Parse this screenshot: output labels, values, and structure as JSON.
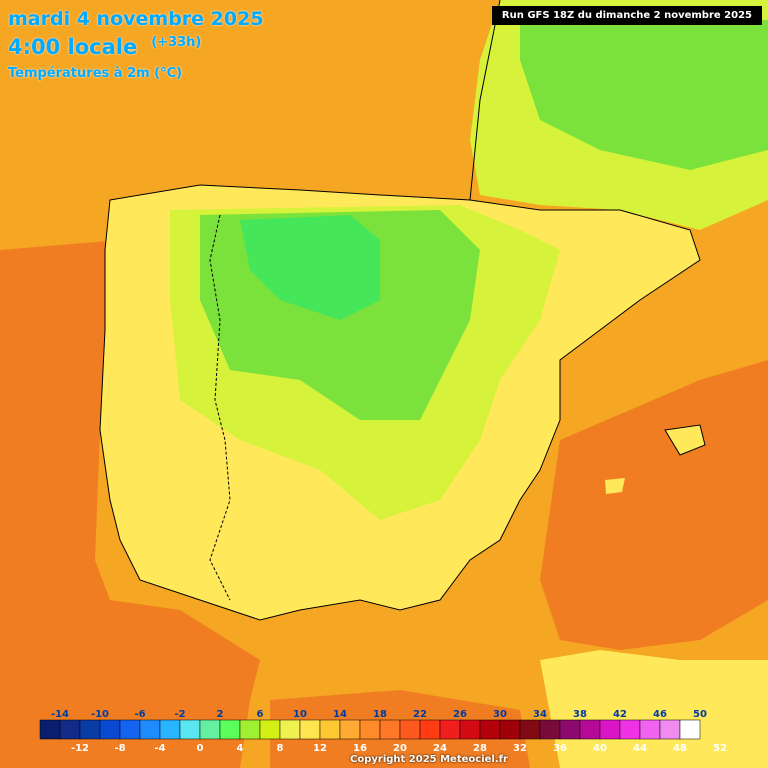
{
  "header": {
    "date": "mardi 4 novembre 2025",
    "time": "4:00 locale",
    "offset": "(+33h)",
    "field": "Températures à 2m (°C)"
  },
  "run_label": "Run GFS 18Z du dimanche 2 novembre 2025",
  "copyright": "Copyright 2025 Meteociel.fr",
  "legend": {
    "upper_labels": [
      "-14",
      "-10",
      "-6",
      "-2",
      "2",
      "6",
      "10",
      "14",
      "18",
      "22",
      "26",
      "30",
      "34",
      "38",
      "42",
      "46",
      "50"
    ],
    "lower_labels": [
      "-12",
      "-8",
      "-4",
      "0",
      "4",
      "8",
      "12",
      "16",
      "20",
      "24",
      "28",
      "32",
      "36",
      "40",
      "44",
      "48",
      "52"
    ],
    "colors": [
      "#0a1e6e",
      "#142a88",
      "#0a3ca8",
      "#0a4ad2",
      "#1464f0",
      "#1e8cff",
      "#28b4ff",
      "#5ae6f0",
      "#64f0a0",
      "#5aff5a",
      "#a0f032",
      "#d2f014",
      "#f0f050",
      "#ffe650",
      "#ffc832",
      "#ffaa32",
      "#ff8c28",
      "#ff7828",
      "#ff5a1e",
      "#ff3c14",
      "#f01e1e",
      "#d20a14",
      "#b4000a",
      "#a0000a",
      "#820a14",
      "#780a3c",
      "#8c0a6e",
      "#b40a96",
      "#dc14c8",
      "#f032e6",
      "#f064f0",
      "#f08cf0",
      "#ffffff"
    ]
  },
  "map": {
    "colors": {
      "sea": "#f5a623",
      "sea_warm": "#f07d22",
      "land": "#ffe85a",
      "land_mid": "#d7f23a",
      "land_cold": "#7be23c",
      "land_colder": "#45e65a"
    }
  }
}
